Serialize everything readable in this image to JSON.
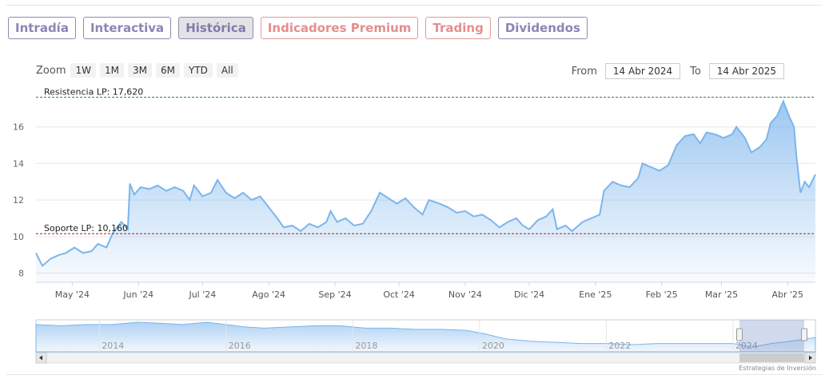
{
  "tabs": [
    {
      "label": "Intradía",
      "kind": "normal"
    },
    {
      "label": "Interactiva",
      "kind": "normal"
    },
    {
      "label": "Histórica",
      "kind": "active"
    },
    {
      "label": "Indicadores Premium",
      "kind": "premium"
    },
    {
      "label": "Trading",
      "kind": "premium"
    },
    {
      "label": "Dividendos",
      "kind": "normal"
    }
  ],
  "zoom": {
    "label": "Zoom",
    "buttons": [
      "1W",
      "1M",
      "3M",
      "6M",
      "YTD",
      "All"
    ]
  },
  "range": {
    "from_label": "From",
    "from_value": "14 Abr 2024",
    "to_label": "To",
    "to_value": "14 Abr 2025"
  },
  "credit": "Estrategias de Inversión",
  "colors": {
    "line": "#7cb5ec",
    "resistance": "#2e7d32",
    "support": "#9e1b32",
    "tab": "#8a86b5",
    "premium": "#e58e8e"
  },
  "chart_data": {
    "type": "area",
    "ylim": [
      7.5,
      18
    ],
    "yticks": [
      8,
      10,
      12,
      14,
      16
    ],
    "xlim": [
      "2024-04-14",
      "2025-04-14"
    ],
    "xticks": [
      {
        "date": "2024-05-01",
        "label": "May '24"
      },
      {
        "date": "2024-06-01",
        "label": "Jun '24"
      },
      {
        "date": "2024-07-01",
        "label": "Jul '24"
      },
      {
        "date": "2024-08-01",
        "label": "Ago '24"
      },
      {
        "date": "2024-09-01",
        "label": "Sep '24"
      },
      {
        "date": "2024-10-01",
        "label": "Oct '24"
      },
      {
        "date": "2024-11-01",
        "label": "Nov '24"
      },
      {
        "date": "2024-12-01",
        "label": "Dic '24"
      },
      {
        "date": "2025-01-01",
        "label": "Ene '25"
      },
      {
        "date": "2025-02-01",
        "label": "Feb '25"
      },
      {
        "date": "2025-03-01",
        "label": "Mar '25"
      },
      {
        "date": "2025-04-01",
        "label": "Abr '25"
      }
    ],
    "points": [
      [
        "2024-04-14",
        9.1
      ],
      [
        "2024-04-17",
        8.4
      ],
      [
        "2024-04-21",
        8.8
      ],
      [
        "2024-04-25",
        9.0
      ],
      [
        "2024-04-28",
        9.1
      ],
      [
        "2024-05-02",
        9.4
      ],
      [
        "2024-05-06",
        9.1
      ],
      [
        "2024-05-10",
        9.2
      ],
      [
        "2024-05-13",
        9.6
      ],
      [
        "2024-05-17",
        9.4
      ],
      [
        "2024-05-20",
        10.2
      ],
      [
        "2024-05-24",
        10.8
      ],
      [
        "2024-05-27",
        10.4
      ],
      [
        "2024-05-28",
        12.9
      ],
      [
        "2024-05-30",
        12.3
      ],
      [
        "2024-06-02",
        12.7
      ],
      [
        "2024-06-06",
        12.6
      ],
      [
        "2024-06-10",
        12.8
      ],
      [
        "2024-06-14",
        12.5
      ],
      [
        "2024-06-18",
        12.7
      ],
      [
        "2024-06-22",
        12.5
      ],
      [
        "2024-06-25",
        12.0
      ],
      [
        "2024-06-27",
        12.8
      ],
      [
        "2024-07-01",
        12.2
      ],
      [
        "2024-07-05",
        12.4
      ],
      [
        "2024-07-08",
        13.1
      ],
      [
        "2024-07-12",
        12.4
      ],
      [
        "2024-07-16",
        12.1
      ],
      [
        "2024-07-20",
        12.4
      ],
      [
        "2024-07-24",
        12.0
      ],
      [
        "2024-07-28",
        12.2
      ],
      [
        "2024-08-01",
        11.6
      ],
      [
        "2024-08-05",
        11.0
      ],
      [
        "2024-08-08",
        10.5
      ],
      [
        "2024-08-12",
        10.6
      ],
      [
        "2024-08-16",
        10.3
      ],
      [
        "2024-08-20",
        10.7
      ],
      [
        "2024-08-24",
        10.5
      ],
      [
        "2024-08-28",
        10.8
      ],
      [
        "2024-08-30",
        11.4
      ],
      [
        "2024-09-02",
        10.8
      ],
      [
        "2024-09-06",
        11.0
      ],
      [
        "2024-09-10",
        10.6
      ],
      [
        "2024-09-14",
        10.7
      ],
      [
        "2024-09-18",
        11.4
      ],
      [
        "2024-09-22",
        12.4
      ],
      [
        "2024-09-26",
        12.1
      ],
      [
        "2024-09-30",
        11.8
      ],
      [
        "2024-10-04",
        12.1
      ],
      [
        "2024-10-08",
        11.6
      ],
      [
        "2024-10-12",
        11.2
      ],
      [
        "2024-10-15",
        12.0
      ],
      [
        "2024-10-20",
        11.8
      ],
      [
        "2024-10-24",
        11.6
      ],
      [
        "2024-10-28",
        11.3
      ],
      [
        "2024-11-01",
        11.4
      ],
      [
        "2024-11-05",
        11.1
      ],
      [
        "2024-11-09",
        11.2
      ],
      [
        "2024-11-13",
        10.9
      ],
      [
        "2024-11-17",
        10.5
      ],
      [
        "2024-11-21",
        10.8
      ],
      [
        "2024-11-25",
        11.0
      ],
      [
        "2024-11-28",
        10.6
      ],
      [
        "2024-12-01",
        10.4
      ],
      [
        "2024-12-05",
        10.9
      ],
      [
        "2024-12-09",
        11.1
      ],
      [
        "2024-12-12",
        11.5
      ],
      [
        "2024-12-14",
        10.4
      ],
      [
        "2024-12-18",
        10.6
      ],
      [
        "2024-12-21",
        10.3
      ],
      [
        "2024-12-26",
        10.8
      ],
      [
        "2024-12-30",
        11.0
      ],
      [
        "2025-01-03",
        11.2
      ],
      [
        "2025-01-05",
        12.5
      ],
      [
        "2025-01-09",
        13.0
      ],
      [
        "2025-01-13",
        12.8
      ],
      [
        "2025-01-17",
        12.7
      ],
      [
        "2025-01-21",
        13.2
      ],
      [
        "2025-01-23",
        14.0
      ],
      [
        "2025-01-27",
        13.8
      ],
      [
        "2025-01-31",
        13.6
      ],
      [
        "2025-02-04",
        13.9
      ],
      [
        "2025-02-08",
        15.0
      ],
      [
        "2025-02-12",
        15.5
      ],
      [
        "2025-02-16",
        15.6
      ],
      [
        "2025-02-19",
        15.1
      ],
      [
        "2025-02-22",
        15.7
      ],
      [
        "2025-02-26",
        15.6
      ],
      [
        "2025-03-02",
        15.4
      ],
      [
        "2025-03-06",
        15.6
      ],
      [
        "2025-03-08",
        16.0
      ],
      [
        "2025-03-12",
        15.4
      ],
      [
        "2025-03-15",
        14.6
      ],
      [
        "2025-03-19",
        14.9
      ],
      [
        "2025-03-22",
        15.3
      ],
      [
        "2025-03-24",
        16.2
      ],
      [
        "2025-03-27",
        16.6
      ],
      [
        "2025-03-30",
        17.4
      ],
      [
        "2025-04-02",
        16.5
      ],
      [
        "2025-04-04",
        16.0
      ],
      [
        "2025-04-05",
        14.5
      ],
      [
        "2025-04-07",
        12.4
      ],
      [
        "2025-04-09",
        13.0
      ],
      [
        "2025-04-11",
        12.7
      ],
      [
        "2025-04-14",
        13.4
      ]
    ],
    "resistance": {
      "label": "Resistencia LP: 17,620",
      "value": 17.62
    },
    "support": {
      "label": "Soporte LP: 10,160",
      "value": 10.16
    },
    "navigator": {
      "labels": [
        "2014",
        "2016",
        "2018",
        "2020",
        "2022",
        "2024"
      ],
      "xlim": [
        2013,
        2025.3
      ],
      "ylim": [
        5,
        32
      ],
      "points": [
        [
          2013.0,
          28
        ],
        [
          2013.4,
          27
        ],
        [
          2013.8,
          28
        ],
        [
          2014.2,
          28
        ],
        [
          2014.6,
          30
        ],
        [
          2015.0,
          29
        ],
        [
          2015.3,
          28
        ],
        [
          2015.7,
          30
        ],
        [
          2016.0,
          28
        ],
        [
          2016.3,
          26
        ],
        [
          2016.6,
          25
        ],
        [
          2017.0,
          26
        ],
        [
          2017.4,
          27
        ],
        [
          2017.8,
          27
        ],
        [
          2018.2,
          25
        ],
        [
          2018.6,
          25
        ],
        [
          2019.0,
          24
        ],
        [
          2019.4,
          24
        ],
        [
          2019.8,
          23
        ],
        [
          2020.1,
          20
        ],
        [
          2020.4,
          16
        ],
        [
          2020.8,
          14
        ],
        [
          2021.2,
          13
        ],
        [
          2021.6,
          12
        ],
        [
          2022.0,
          12
        ],
        [
          2022.4,
          11
        ],
        [
          2022.8,
          12
        ],
        [
          2023.2,
          12
        ],
        [
          2023.6,
          12
        ],
        [
          2024.0,
          12
        ],
        [
          2024.3,
          9
        ],
        [
          2024.6,
          12
        ],
        [
          2024.9,
          14
        ],
        [
          2025.3,
          17
        ]
      ]
    }
  }
}
